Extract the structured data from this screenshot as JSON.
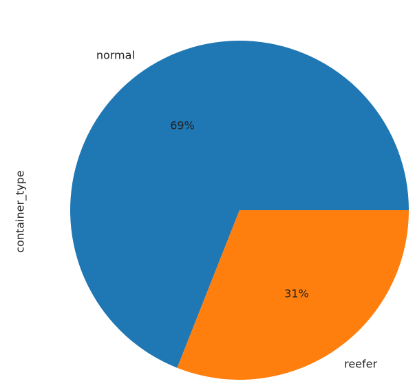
{
  "chart_data": {
    "type": "pie",
    "title": "",
    "ylabel": "container_type",
    "categories": [
      "normal",
      "reefer"
    ],
    "values": [
      69,
      31
    ],
    "value_labels": [
      "69%",
      "31%"
    ],
    "colors": [
      "#1f77b4",
      "#ff7f0e"
    ],
    "start_angle_deg": 0,
    "direction": "counterclockwise"
  }
}
